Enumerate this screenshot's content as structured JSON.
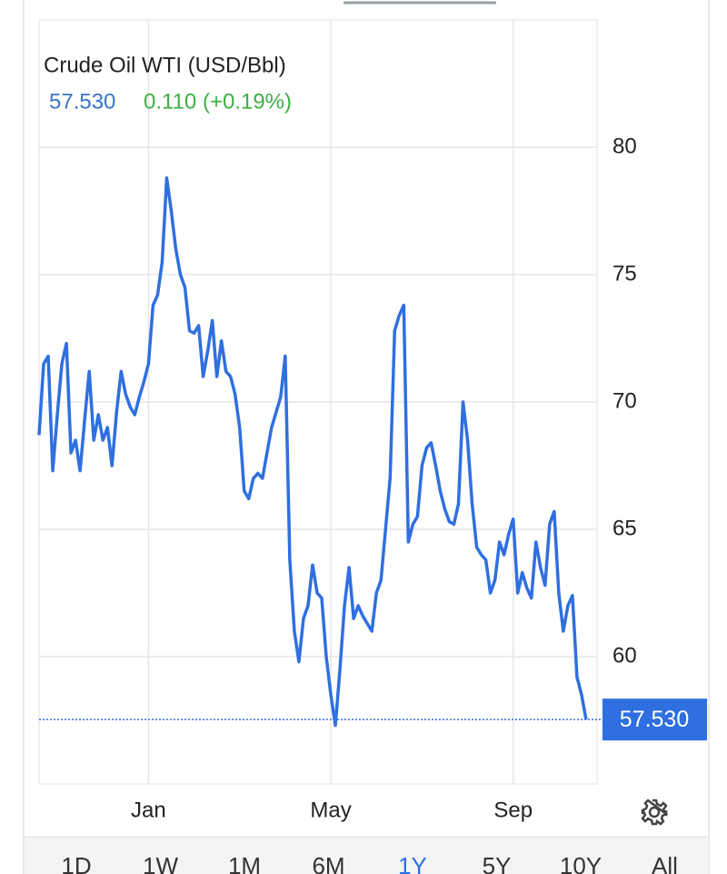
{
  "chart_data": {
    "type": "line",
    "title": "Crude Oil WTI (USD/Bbl)",
    "current": {
      "value": 57.53,
      "label": "57.530"
    },
    "change": "0.110 (+0.19%)",
    "x": [
      0,
      1,
      2,
      3,
      4,
      5,
      6,
      7,
      8,
      9,
      10,
      11,
      12,
      13,
      14,
      15,
      16,
      17,
      18,
      19,
      20,
      21,
      22,
      23,
      24,
      25,
      26,
      27,
      28,
      29,
      30,
      31,
      32,
      33,
      34,
      35,
      36,
      37,
      38,
      39,
      40,
      41,
      42,
      43,
      44,
      45,
      46,
      47,
      48,
      49,
      50,
      51,
      52,
      53,
      54,
      55,
      56,
      57,
      58,
      59,
      60,
      61,
      62,
      63,
      64,
      65,
      66,
      67,
      68,
      69,
      70,
      71,
      72,
      73,
      74,
      75,
      76,
      77,
      78,
      79,
      80,
      81,
      82,
      83,
      84,
      85,
      86,
      87,
      88,
      89,
      90,
      91,
      92,
      93,
      94,
      95,
      96,
      97,
      98,
      99,
      100,
      101,
      102,
      103,
      104,
      105,
      106,
      107,
      108,
      109,
      110,
      111,
      112,
      113,
      114,
      115,
      116,
      117,
      118,
      119,
      120
    ],
    "series": [
      {
        "color": "#2f6fe0",
        "values": [
          68.7,
          71.5,
          71.8,
          67.3,
          69.5,
          71.5,
          72.3,
          68,
          68.5,
          67.3,
          69.3,
          71.2,
          68.5,
          69.5,
          68.5,
          69,
          67.5,
          69.6,
          71.2,
          70.3,
          69.8,
          69.5,
          70.2,
          70.8,
          71.5,
          73.8,
          74.2,
          75.5,
          78.8,
          77.5,
          76,
          75,
          74.5,
          72.8,
          72.7,
          73,
          71,
          72,
          73.2,
          71,
          72.4,
          71.2,
          71,
          70.3,
          69,
          66.5,
          66.2,
          67,
          67.2,
          67,
          68,
          69,
          69.6,
          70.2,
          71.8,
          63.8,
          61,
          59.8,
          61.5,
          62,
          63.6,
          62.5,
          62.3,
          60,
          58.5,
          57.3,
          59.5,
          62,
          63.5,
          61.5,
          62,
          61.6,
          61.3,
          61,
          62.5,
          63,
          65,
          67,
          72.8,
          73.4,
          73.8,
          64.5,
          65.2,
          65.5,
          67.5,
          68.2,
          68.4,
          67.5,
          66.5,
          65.8,
          65.3,
          65.2,
          66,
          70,
          68.5,
          66,
          64.3,
          64,
          63.8,
          62.5,
          63,
          64.5,
          64,
          64.8,
          65.4,
          62.5,
          63.3,
          62.7,
          62.3,
          64.5,
          63.5,
          62.8,
          65.2,
          65.7,
          62.5,
          61,
          62,
          62.4,
          59.2,
          58.5,
          57.53
        ]
      }
    ],
    "xlim": [
      0,
      122.4
    ],
    "xticks": [
      {
        "value": 24,
        "label": "Jan"
      },
      {
        "value": 64,
        "label": "May"
      },
      {
        "value": 104,
        "label": "Sep"
      }
    ],
    "ylim": [
      55,
      85
    ],
    "yticks": [
      60,
      65,
      70,
      75,
      80
    ],
    "grid": true
  },
  "ranges": [
    "1D",
    "1W",
    "1M",
    "6M",
    "1Y",
    "5Y",
    "10Y",
    "All"
  ]
}
